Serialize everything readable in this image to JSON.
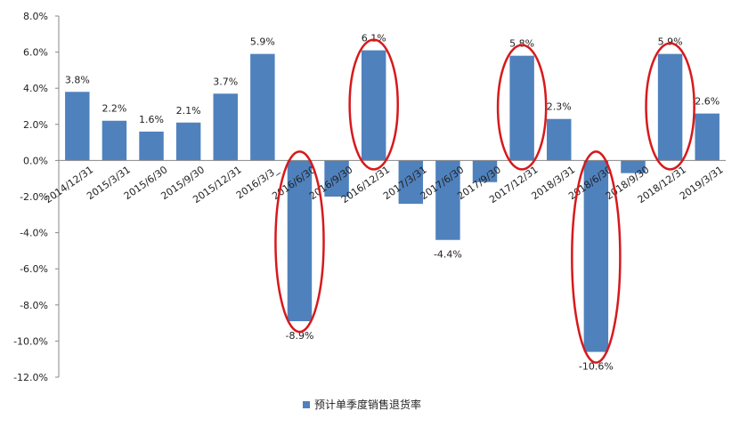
{
  "colors": {
    "bar": "#4f81bd",
    "highlight": "#d7191c",
    "axis": "#888888"
  },
  "legend": {
    "label": "预计单季度销售退货率"
  },
  "chart_data": {
    "type": "bar",
    "categories": [
      "2014/12/31",
      "2015/3/31",
      "2015/6/30",
      "2015/9/30",
      "2015/12/31",
      "2016/3/3_",
      "2016/6/30",
      "2016/9/30",
      "2016/12/31",
      "2017/3/31",
      "2017/6/30",
      "2017/9/30",
      "2017/12/31",
      "2018/3/31",
      "2018/6/30",
      "2018/9/30",
      "2018/12/31",
      "2019/3/31"
    ],
    "series": [
      {
        "name": "预计单季度销售退货率",
        "values": [
          3.8,
          2.2,
          1.6,
          2.1,
          3.7,
          5.9,
          -8.9,
          -2.0,
          6.1,
          -2.4,
          -4.4,
          -1.2,
          5.8,
          2.3,
          -10.6,
          -0.7,
          5.9,
          2.6
        ]
      }
    ],
    "data_labels": [
      "3.8%",
      "2.2%",
      "1.6%",
      "2.1%",
      "3.7%",
      "5.9%",
      "-8.9%",
      "",
      "6.1%",
      "",
      "-4.4%",
      "",
      "5.8%",
      "2.3%",
      "-10.6%",
      "",
      "5.9%",
      "2.6%"
    ],
    "y_tick_labels": [
      "8.0%",
      "6.0%",
      "4.0%",
      "2.0%",
      "0.0%",
      "-2.0%",
      "-4.0%",
      "-6.0%",
      "-8.0%",
      "-10.0%",
      "-12.0%"
    ],
    "ylim": [
      -12,
      8
    ],
    "y_ticks": [
      8,
      6,
      4,
      2,
      0,
      -2,
      -4,
      -6,
      -8,
      -10,
      -12
    ],
    "highlighted_categories": [
      "2016/6/30",
      "2016/12/31",
      "2017/12/31",
      "2018/6/30",
      "2018/12/31"
    ],
    "grid": false,
    "legend_position": "bottom",
    "xlabel": "",
    "ylabel": "",
    "title": ""
  }
}
